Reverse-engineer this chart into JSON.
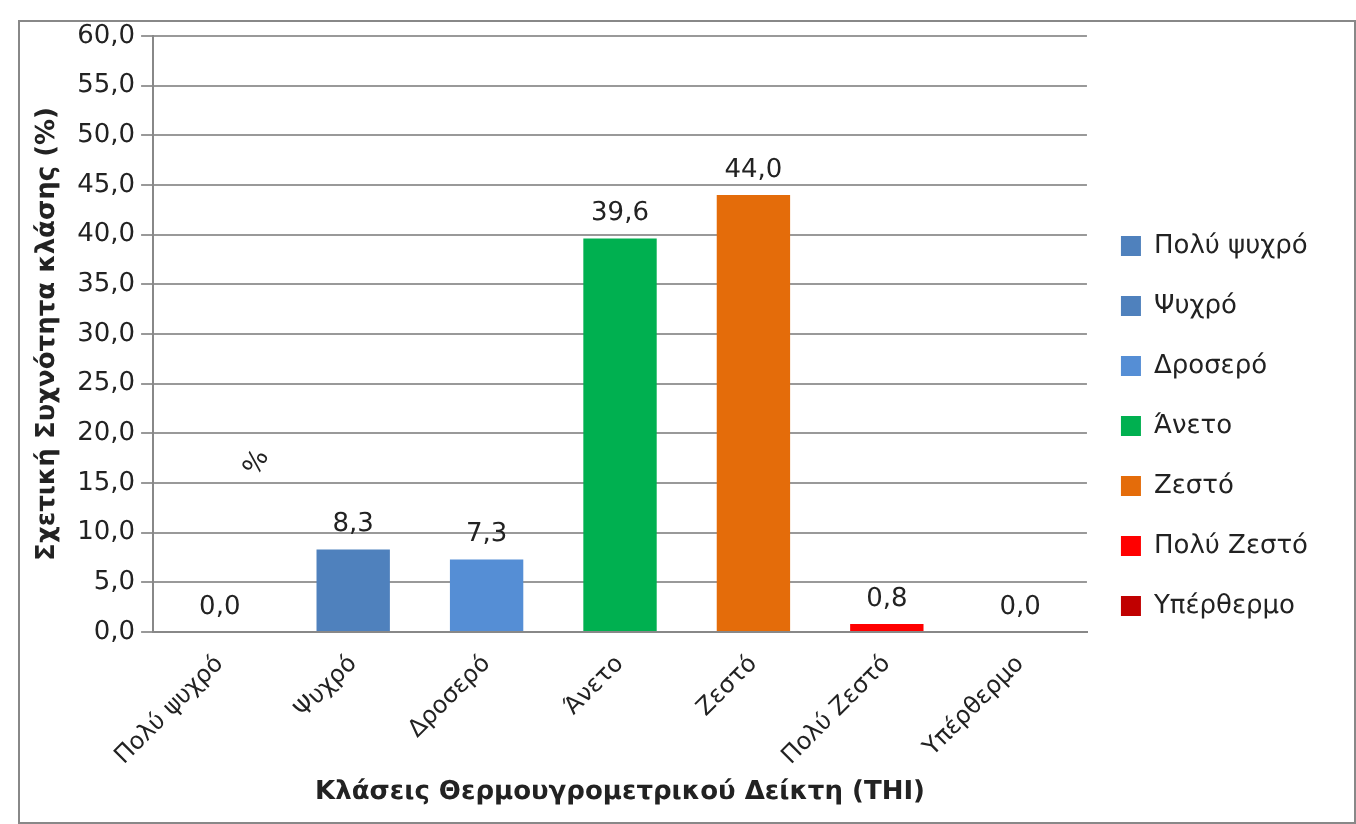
{
  "chart_data": {
    "type": "bar",
    "xlabel": "Κλάσεις Θερμουγρομετρικού Δείκτη (THI)",
    "ylabel": "Σχετική Συχνότητα κλάσης (%)",
    "categories": [
      "Πολύ ψυχρό",
      "Ψυχρό",
      "Δροσερό",
      "Άνετο",
      "Ζεστό",
      "Πολύ Ζεστό",
      "Υπέρθερμο"
    ],
    "series": [
      {
        "name": "Πολύ ψυχρό",
        "color": "#4f81bd",
        "values": [
          0,
          null,
          null,
          null,
          null,
          null,
          null
        ],
        "value_labels": [
          "0,0",
          null,
          null,
          null,
          null,
          null,
          null
        ]
      },
      {
        "name": "Ψυχρό",
        "color": "#4f81bd",
        "values": [
          null,
          8.3,
          null,
          null,
          null,
          null,
          null
        ],
        "value_labels": [
          null,
          "8,3",
          null,
          null,
          null,
          null,
          null
        ]
      },
      {
        "name": "Δροσερό",
        "color": "#558ed5",
        "values": [
          null,
          null,
          7.3,
          null,
          null,
          null,
          null
        ],
        "value_labels": [
          null,
          null,
          "7,3",
          null,
          null,
          null,
          null
        ]
      },
      {
        "name": "Άνετο",
        "color": "#00b050",
        "values": [
          null,
          null,
          null,
          39.6,
          null,
          null,
          null
        ],
        "value_labels": [
          null,
          null,
          null,
          "39,6",
          null,
          null,
          null
        ]
      },
      {
        "name": "Ζεστό",
        "color": "#e46c0a",
        "values": [
          null,
          null,
          null,
          null,
          44.0,
          null,
          null
        ],
        "value_labels": [
          null,
          null,
          null,
          null,
          "44,0",
          null,
          null
        ]
      },
      {
        "name": "Πολύ Ζεστό",
        "color": "#ff0000",
        "values": [
          null,
          null,
          null,
          null,
          null,
          0.8,
          null
        ],
        "value_labels": [
          null,
          null,
          null,
          null,
          null,
          "0,8",
          null
        ]
      },
      {
        "name": "Υπέρθερμο",
        "color": "#c00000",
        "values": [
          null,
          null,
          null,
          null,
          null,
          null,
          0
        ],
        "value_labels": [
          null,
          null,
          null,
          null,
          null,
          null,
          "0,0"
        ]
      }
    ],
    "ylim": [
      0,
      60
    ],
    "yticks": [
      {
        "value": 0,
        "label": "0,0"
      },
      {
        "value": 5,
        "label": "5,0"
      },
      {
        "value": 10,
        "label": "10,0"
      },
      {
        "value": 15,
        "label": "15,0"
      },
      {
        "value": 20,
        "label": "20,0"
      },
      {
        "value": 25,
        "label": "25,0"
      },
      {
        "value": 30,
        "label": "30,0"
      },
      {
        "value": 35,
        "label": "35,0"
      },
      {
        "value": 40,
        "label": "40,0"
      },
      {
        "value": 45,
        "label": "45,0"
      },
      {
        "value": 50,
        "label": "50,0"
      },
      {
        "value": 55,
        "label": "55,0"
      },
      {
        "value": 60,
        "label": "60,0"
      }
    ],
    "grid": "y",
    "legend": "right",
    "annotations": [
      "%"
    ]
  }
}
